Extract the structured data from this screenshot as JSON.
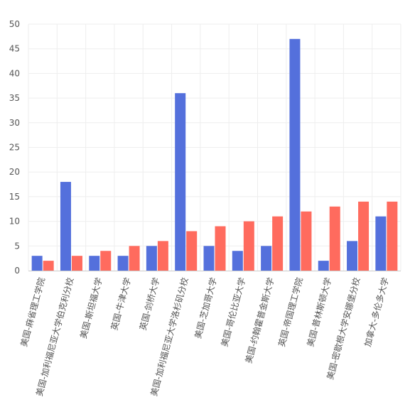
{
  "chart_data": {
    "type": "bar",
    "categories": [
      "美国-麻省理工学院",
      "美国-加利福尼亚大学伯克利分校",
      "美国-斯坦福大学",
      "英国-牛津大学",
      "英国-剑桥大学",
      "美国-加利福尼亚大学洛杉矶分校",
      "美国-芝加哥大学",
      "美国-哥伦比亚大学",
      "美国-约翰霍普金斯大学",
      "英国-帝国理工学院",
      "美国-普林斯顿大学",
      "美国-密歇根大学安娜堡分校",
      "加拿大-多伦多大学"
    ],
    "series": [
      {
        "values": [
          3,
          18,
          3,
          3,
          5,
          36,
          5,
          4,
          5,
          47,
          2,
          6,
          11
        ],
        "color": "#5470dc"
      },
      {
        "values": [
          2,
          3,
          4,
          5,
          6,
          8,
          9,
          10,
          11,
          12,
          13,
          14,
          14
        ],
        "color": "#ff6b5e"
      }
    ],
    "title": "",
    "xlabel": "",
    "ylabel": "",
    "ylim": [
      0,
      50
    ],
    "yticks": [
      0,
      5,
      10,
      15,
      20,
      25,
      30,
      35,
      40,
      45,
      50
    ],
    "grid": true,
    "legend": "none"
  }
}
